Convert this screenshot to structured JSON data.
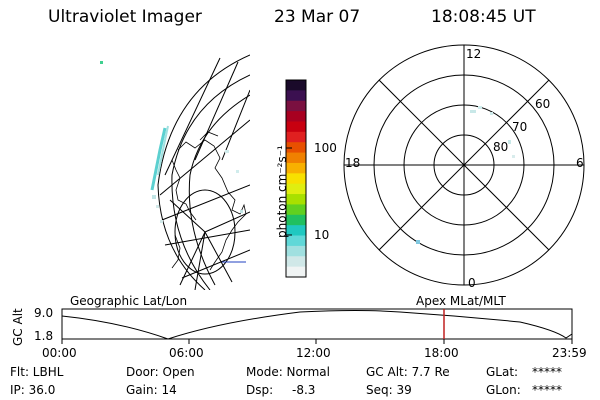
{
  "header": {
    "instrument": "Ultraviolet Imager",
    "date": "23 Mar 07",
    "time": "18:08:45 UT"
  },
  "colorbar": {
    "unit_label": "photon cm⁻²s⁻¹",
    "tick_100": "100",
    "tick_10": "10",
    "colors": [
      "#1a0a2a",
      "#3b1050",
      "#7a1040",
      "#a80020",
      "#c80010",
      "#e02020",
      "#e85000",
      "#f08000",
      "#f8b000",
      "#f8e000",
      "#e0ee10",
      "#a8e000",
      "#60d020",
      "#20c060",
      "#20c8c0",
      "#60d8d8",
      "#a0e0e0",
      "#d0e8e8",
      "#f0f4f4"
    ]
  },
  "left_map": {
    "label": "Geographic Lat/Lon"
  },
  "right_map": {
    "label": "Apex MLat/MLT",
    "mlt_labels": [
      "12",
      "18",
      "6",
      "0"
    ],
    "lat_labels": [
      "60",
      "70",
      "80"
    ]
  },
  "altitude_plot": {
    "y_label": "GC Alt",
    "y_max": "9.0",
    "y_min": "1.8",
    "x_ticks": [
      "00:00",
      "06:00",
      "12:00",
      "18:00",
      "23:59"
    ],
    "marker_time": "18:08"
  },
  "footer": {
    "filter": "Flt: LBHL",
    "ip": "IP: 36.0",
    "door": "Door: Open",
    "gain": "Gain: 14",
    "mode": "Mode: Normal",
    "dsp_label": "Dsp:",
    "dsp_value": "-8.3",
    "gc_alt": "GC Alt: 7.7 Re",
    "seq": "Seq: 39",
    "glat_label": "GLat:",
    "glat_value": "*****",
    "glon_label": "GLon:",
    "glon_value": "*****"
  }
}
